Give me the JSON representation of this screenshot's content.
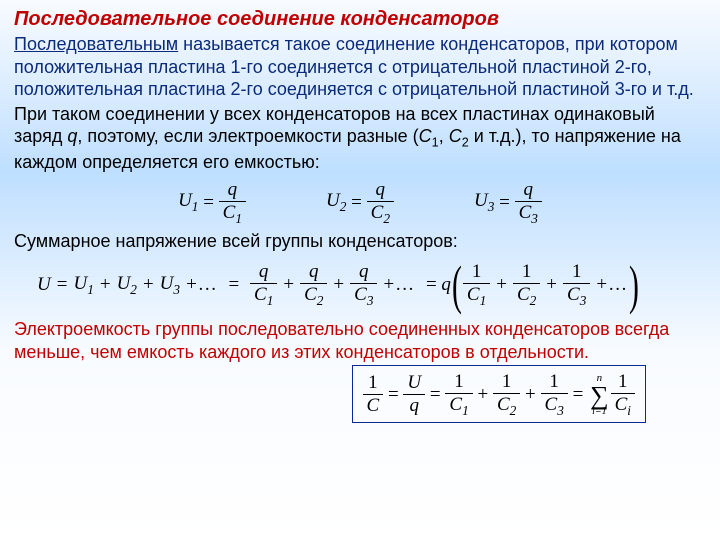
{
  "colors": {
    "title": "#c00000",
    "blueText": "#0a2a7a",
    "boxBorder": "#0a2a9a",
    "black": "#000000"
  },
  "title": "Последовательное соединение конденсаторов",
  "bluePara": {
    "lead": "Последовательным",
    "rest": " называется такое соединение конденсаторов, при котором положительная пластина 1-го соединяется с отрицательной пластиной 2-го, положительная пластина 2-го соединяется с отрицательной пластиной 3-го и т.д."
  },
  "blackPara": {
    "p1a": "При таком соединении у всех конденсаторов на всех пластинах одинаковый заряд ",
    "q": "q",
    "p1b": ", поэтому, если электроемкости разные (",
    "C1": "C",
    "s1": "1",
    "comma": ", ",
    "C2": "C",
    "s2": "2",
    "p1c": " и т.д.), то напряжение на каждом определяется его емкостью:"
  },
  "eqRow": [
    {
      "lhs": "U",
      "sub": "1",
      "num": "q",
      "den": "C",
      "densub": "1"
    },
    {
      "lhs": "U",
      "sub": "2",
      "num": "q",
      "den": "C",
      "densub": "2"
    },
    {
      "lhs": "U",
      "sub": "3",
      "num": "q",
      "den": "C",
      "densub": "3"
    }
  ],
  "sumLine": "Суммарное напряжение всей группы конденсаторов:",
  "eqLong": {
    "U": "U",
    "eq": " = ",
    "U1": "U",
    "s1": "1",
    "plus": " + ",
    "U2": "U",
    "s2": "2",
    "U3": "U",
    "s3": "3",
    "ell": " +…",
    "q": "q",
    "C": "C",
    "one": "1"
  },
  "conclusion": "Электроемкость группы последовательно соединенных конденсаторов всегда меньше, чем емкость каждого из этих конденсаторов в отдельности.",
  "box": {
    "one": "1",
    "C": "C",
    "U": "U",
    "q": "q",
    "n": "n",
    "ieq1": "i=1",
    "Ci": "C",
    "i": "i"
  }
}
